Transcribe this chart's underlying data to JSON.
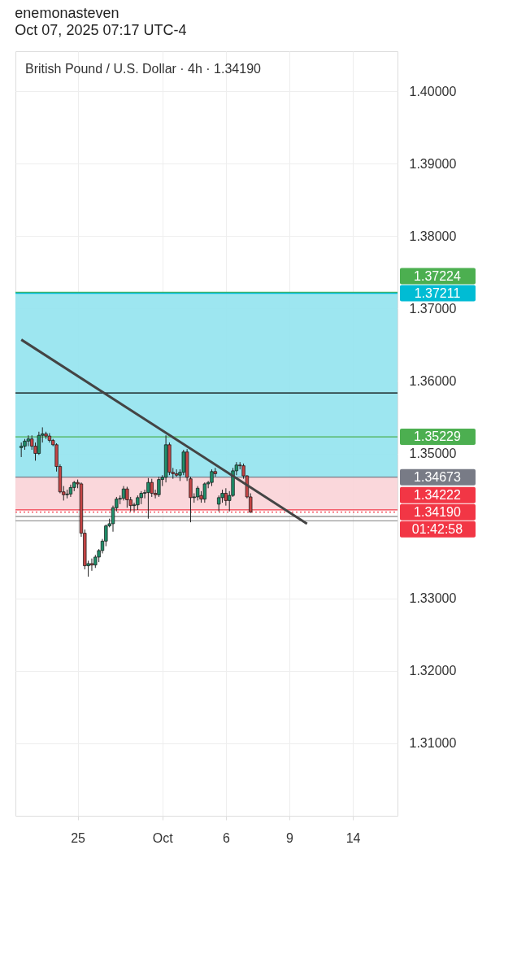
{
  "chart_data": {
    "type": "candlestick",
    "title": "enemonasteven",
    "subtitle": "Oct 07, 2025 07:17 UTC-4",
    "annotations": [
      "British Pound / U.S. Dollar · 4h · 1.34190",
      "01:42:58"
    ],
    "categories": [
      null,
      null,
      null,
      null,
      null,
      null,
      null,
      null,
      null,
      null,
      null,
      null,
      null,
      null,
      null,
      null,
      "25",
      null,
      null,
      null,
      null,
      null,
      null,
      null,
      null,
      null,
      null,
      null,
      null,
      null,
      null,
      null,
      null,
      null,
      null,
      null,
      null,
      null,
      null,
      null,
      "Oct",
      null,
      null,
      null,
      null,
      null,
      null,
      null,
      null,
      null,
      null,
      null,
      null,
      null,
      null,
      null,
      null,
      null,
      "6",
      null,
      null,
      null,
      null,
      null,
      null,
      null,
      null,
      null,
      null,
      null,
      null,
      null,
      null,
      null,
      null,
      null,
      "9",
      null,
      null,
      null,
      null,
      null,
      null,
      null,
      null,
      null,
      null,
      null,
      null,
      null,
      null,
      null,
      null,
      null,
      "14",
      null,
      null,
      null,
      null,
      null,
      null,
      null,
      null,
      null,
      null,
      null
    ],
    "ohlc": [
      [
        1.3508,
        1.3515,
        1.3495,
        1.351
      ],
      [
        1.351,
        1.352,
        1.3505,
        1.3517
      ],
      [
        1.3517,
        1.3525,
        1.351,
        1.352
      ],
      [
        1.352,
        1.3525,
        1.3505,
        1.351
      ],
      [
        1.351,
        1.3515,
        1.349,
        1.35
      ],
      [
        1.35,
        1.353,
        1.3498,
        1.3525
      ],
      [
        1.3525,
        1.3536,
        1.3515,
        1.3527
      ],
      [
        1.3527,
        1.353,
        1.352,
        1.3524
      ],
      [
        1.3524,
        1.3528,
        1.3515,
        1.3518
      ],
      [
        1.3518,
        1.352,
        1.351,
        1.3512
      ],
      [
        1.3512,
        1.3514,
        1.3475,
        1.3482
      ],
      [
        1.3482,
        1.3485,
        1.3445,
        1.3447
      ],
      [
        1.3447,
        1.3455,
        1.3435,
        1.3443
      ],
      [
        1.3443,
        1.345,
        1.3438,
        1.3444
      ],
      [
        1.3444,
        1.3457,
        1.344,
        1.3453
      ],
      [
        1.3453,
        1.3462,
        1.3448,
        1.346
      ],
      [
        1.346,
        1.3464,
        1.3452,
        1.3458
      ],
      [
        1.3458,
        1.346,
        1.3385,
        1.339
      ],
      [
        1.339,
        1.3395,
        1.334,
        1.3345
      ],
      [
        1.3345,
        1.3352,
        1.333,
        1.3348
      ],
      [
        1.3348,
        1.3355,
        1.3338,
        1.3346
      ],
      [
        1.3346,
        1.336,
        1.3342,
        1.3357
      ],
      [
        1.3357,
        1.3368,
        1.335,
        1.3366
      ],
      [
        1.3366,
        1.3382,
        1.3362,
        1.3379
      ],
      [
        1.3379,
        1.3402,
        1.3372,
        1.34
      ],
      [
        1.34,
        1.341,
        1.3398,
        1.3403
      ],
      [
        1.3403,
        1.3428,
        1.3392,
        1.3425
      ],
      [
        1.3425,
        1.344,
        1.342,
        1.3437
      ],
      [
        1.3437,
        1.3442,
        1.343,
        1.3438
      ],
      [
        1.3438,
        1.3455,
        1.3435,
        1.3451
      ],
      [
        1.3451,
        1.3454,
        1.3425,
        1.3436
      ],
      [
        1.3436,
        1.344,
        1.342,
        1.3428
      ],
      [
        1.3428,
        1.3432,
        1.342,
        1.3429
      ],
      [
        1.3429,
        1.3442,
        1.3422,
        1.3439
      ],
      [
        1.3439,
        1.3448,
        1.343,
        1.3445
      ],
      [
        1.3445,
        1.345,
        1.3438,
        1.3446
      ],
      [
        1.3446,
        1.3466,
        1.341,
        1.346
      ],
      [
        1.346,
        1.3465,
        1.344,
        1.3445
      ],
      [
        1.3445,
        1.345,
        1.3438,
        1.3443
      ],
      [
        1.3443,
        1.3468,
        1.344,
        1.3464
      ],
      [
        1.3464,
        1.347,
        1.3455,
        1.3467
      ],
      [
        1.3467,
        1.3525,
        1.346,
        1.3512
      ],
      [
        1.3512,
        1.3515,
        1.347,
        1.3474
      ],
      [
        1.3474,
        1.348,
        1.3465,
        1.3472
      ],
      [
        1.3472,
        1.3478,
        1.3468,
        1.347
      ],
      [
        1.347,
        1.3478,
        1.3462,
        1.3474
      ],
      [
        1.3474,
        1.3505,
        1.347,
        1.3502
      ],
      [
        1.3502,
        1.3506,
        1.3462,
        1.3467
      ],
      [
        1.3465,
        1.3468,
        1.3405,
        1.3439
      ],
      [
        1.3439,
        1.3445,
        1.3432,
        1.344
      ],
      [
        1.344,
        1.3455,
        1.3435,
        1.3452
      ],
      [
        1.3442,
        1.3448,
        1.3432,
        1.3437
      ],
      [
        1.3437,
        1.346,
        1.3432,
        1.3458
      ],
      [
        1.3458,
        1.3462,
        1.3452,
        1.346
      ],
      [
        1.346,
        1.3478,
        1.3455,
        1.3475
      ],
      [
        1.3475,
        1.348,
        1.3468,
        1.3472
      ],
      [
        1.343,
        1.3442,
        1.342,
        1.3439
      ],
      [
        1.3439,
        1.345,
        1.3432,
        1.3445
      ],
      [
        1.3445,
        1.3452,
        1.3428,
        1.3435
      ],
      [
        1.3435,
        1.3448,
        1.342,
        1.3442
      ],
      [
        1.3442,
        1.348,
        1.344,
        1.3476
      ],
      [
        1.3476,
        1.3488,
        1.347,
        1.3484
      ],
      [
        1.3484,
        1.3488,
        1.3478,
        1.3483
      ],
      [
        1.3483,
        1.3486,
        1.3465,
        1.3469
      ],
      [
        1.3469,
        1.347,
        1.3438,
        1.344
      ],
      [
        1.344,
        1.3445,
        1.3418,
        1.3419
      ],
      null,
      null,
      null,
      null,
      null,
      null,
      null,
      null,
      null,
      null,
      null,
      null,
      null,
      null,
      null,
      null,
      null,
      null,
      null,
      null,
      null,
      null,
      null,
      null,
      null,
      null,
      null,
      null,
      null,
      null,
      null,
      null,
      null,
      null,
      null,
      null,
      null,
      null,
      null,
      null
    ],
    "colors": [
      "#1f8f6a",
      "#1f8f6a",
      "#1f8f6a",
      "#c44545",
      "#c44545",
      "#1f8f6a",
      "#1f8f6a",
      "#c44545",
      "#c44545",
      "#c44545",
      "#c44545",
      "#c44545",
      "#c44545",
      "#1f8f6a",
      "#1f8f6a",
      "#1f8f6a",
      "#c44545",
      "#c44545",
      "#c44545",
      "#1f8f6a",
      "#c44545",
      "#1f8f6a",
      "#1f8f6a",
      "#1f8f6a",
      "#1f8f6a",
      "#1f8f6a",
      "#1f8f6a",
      "#1f8f6a",
      "#1f8f6a",
      "#1f8f6a",
      "#c44545",
      "#c44545",
      "#1f8f6a",
      "#1f8f6a",
      "#1f8f6a",
      "#1f8f6a",
      "#1f8f6a",
      "#c44545",
      "#c44545",
      "#1f8f6a",
      "#1f8f6a",
      "#1f8f6a",
      "#c44545",
      "#c44545",
      "#c44545",
      "#1f8f6a",
      "#1f8f6a",
      "#c44545",
      "#c44545",
      "#1f8f6a",
      "#1f8f6a",
      "#c44545",
      "#1f8f6a",
      "#1f8f6a",
      "#1f8f6a",
      "#c44545",
      "#1f8f6a",
      "#1f8f6a",
      "#c44545",
      "#1f8f6a",
      "#1f8f6a",
      "#1f8f6a",
      "#c44545",
      "#c44545",
      "#c44545",
      "#c44545",
      null,
      null,
      null,
      null,
      null,
      null,
      null,
      null,
      null,
      null,
      null,
      null,
      null,
      null,
      null,
      null,
      null,
      null,
      null,
      null,
      null,
      null,
      null,
      null,
      null,
      null,
      null,
      null,
      null,
      null,
      null,
      null,
      null,
      null,
      null,
      null,
      null,
      null,
      null,
      null
    ],
    "series": [
      {
        "type": "line",
        "color": "#444444",
        "values": [
          1.3657,
          null,
          null,
          null,
          null,
          null,
          null,
          null,
          null,
          null,
          null,
          null,
          null,
          null,
          null,
          null,
          null,
          null,
          null,
          null,
          null,
          null,
          null,
          null,
          null,
          null,
          null,
          null,
          null,
          null,
          null,
          null,
          null,
          null,
          null,
          null,
          null,
          null,
          null,
          null,
          null,
          null,
          null,
          null,
          null,
          null,
          null,
          null,
          null,
          null,
          null,
          null,
          null,
          null,
          null,
          null,
          null,
          null,
          null,
          null,
          null,
          null,
          null,
          null,
          null,
          null,
          null,
          null,
          null,
          null,
          null,
          null,
          null,
          null,
          null,
          null,
          null,
          null,
          null,
          null,
          null,
          1.3403,
          null,
          null,
          null,
          null,
          null,
          null,
          null,
          null,
          null,
          null,
          null,
          null,
          null,
          null,
          null,
          null,
          null,
          null,
          null,
          null,
          null,
          null,
          null,
          null
        ]
      }
    ],
    "bands": [
      {
        "axis": "y",
        "from": 1.34673,
        "to": 1.37211,
        "color": "#92e3ee"
      },
      {
        "axis": "y",
        "from": 1.34222,
        "to": 1.34673,
        "color": "#f9d3d7"
      }
    ],
    "ref_lines": [
      {
        "axis": "y",
        "value": 1.37224,
        "label": "1.37224",
        "color": "#4caf50"
      },
      {
        "axis": "y",
        "value": 1.37211,
        "label": "1.37211",
        "color": "#00bcd4"
      },
      {
        "axis": "y",
        "value": 1.35834,
        "color": "#000000"
      },
      {
        "axis": "y",
        "value": 1.35229,
        "label": "1.35229",
        "color": "#4caf50"
      },
      {
        "axis": "y",
        "value": 1.34673,
        "label": "1.34673",
        "color": "#787b86"
      },
      {
        "axis": "y",
        "value": 1.34222,
        "label": "1.34222",
        "color": "#f23645"
      },
      {
        "axis": "y",
        "value": 1.3419,
        "label": "1.34190",
        "color": "#f23645",
        "line_style": "dotted"
      },
      {
        "axis": "y",
        "value": 1.3413,
        "color": "#999999"
      },
      {
        "axis": "y",
        "value": 1.3407,
        "color": "#999999"
      }
    ],
    "ylim": [
      1.3,
      1.4055
    ],
    "yticks": [
      {
        "value": 1.31,
        "label": "1.31000"
      },
      {
        "value": 1.32,
        "label": "1.32000"
      },
      {
        "value": 1.33,
        "label": "1.33000"
      },
      {
        "value": 1.35,
        "label": "1.35000"
      },
      {
        "value": 1.36,
        "label": "1.36000"
      },
      {
        "value": 1.37,
        "label": "1.37000"
      },
      {
        "value": 1.38,
        "label": "1.38000"
      },
      {
        "value": 1.39,
        "label": "1.39000"
      },
      {
        "value": 1.4,
        "label": "1.40000"
      }
    ],
    "grid": true
  }
}
